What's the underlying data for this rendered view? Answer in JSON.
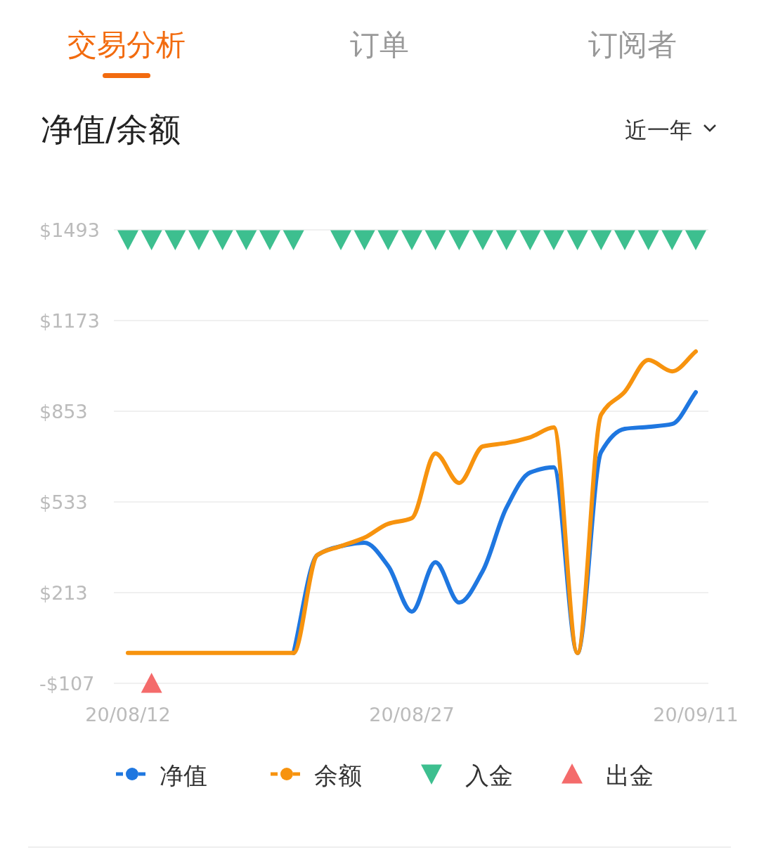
{
  "chart_data": {
    "type": "line",
    "title": "净值/余额",
    "annotations": [
      "交易分析",
      "订单",
      "订阅者",
      "近一年"
    ],
    "categories": [
      "20/08/12",
      null,
      null,
      null,
      null,
      null,
      null,
      null,
      null,
      null,
      null,
      null,
      "20/08/27",
      null,
      null,
      null,
      null,
      null,
      null,
      null,
      null,
      null,
      null,
      null,
      "20/09/11"
    ],
    "series": [
      {
        "name": "净值",
        "color": "#1f77e0",
        "values": [
          null,
          null,
          null,
          null,
          null,
          null,
          null,
          0,
          345,
          377,
          389,
          307,
          146,
          320,
          178,
          290,
          513,
          637,
          655,
          0,
          709,
          791,
          798,
          808,
          920
        ]
      },
      {
        "name": "余额",
        "color": "#f7930e",
        "values": [
          0,
          0,
          0,
          0,
          0,
          0,
          0,
          0,
          345,
          377,
          407,
          456,
          476,
          704,
          600,
          729,
          741,
          761,
          796,
          0,
          841,
          922,
          1034,
          994,
          1064
        ]
      },
      {
        "name": "入金",
        "type": "scatter",
        "marker": "triangle",
        "color": "#3dbf8f",
        "values": [
          1458,
          1458,
          1458,
          1458,
          1458,
          1458,
          1458,
          1458,
          null,
          1458,
          1458,
          1458,
          1458,
          1458,
          1458,
          1458,
          1458,
          1458,
          1458,
          1458,
          1458,
          1458,
          1458,
          1458,
          1458
        ]
      },
      {
        "name": "出金",
        "type": "scatter",
        "marker": "triangle",
        "color": "#f46b6b",
        "values": [
          null,
          -107,
          null,
          null,
          null,
          null,
          null,
          null,
          null,
          null,
          null,
          null,
          null,
          null,
          null,
          null,
          null,
          null,
          null,
          null,
          null,
          null,
          null,
          null,
          null
        ]
      }
    ],
    "ylim": [
      -107,
      1493
    ],
    "yticks": [
      {
        "value": -107,
        "label": "-$107"
      },
      {
        "value": 213,
        "label": "$213"
      },
      {
        "value": 533,
        "label": "$533"
      },
      {
        "value": 853,
        "label": "$853"
      },
      {
        "value": 1173,
        "label": "$1173"
      },
      {
        "value": 1493,
        "label": "$1493"
      }
    ],
    "grid": "y",
    "legend": "bottom",
    "marker": "none",
    "line_style": "solid"
  }
}
